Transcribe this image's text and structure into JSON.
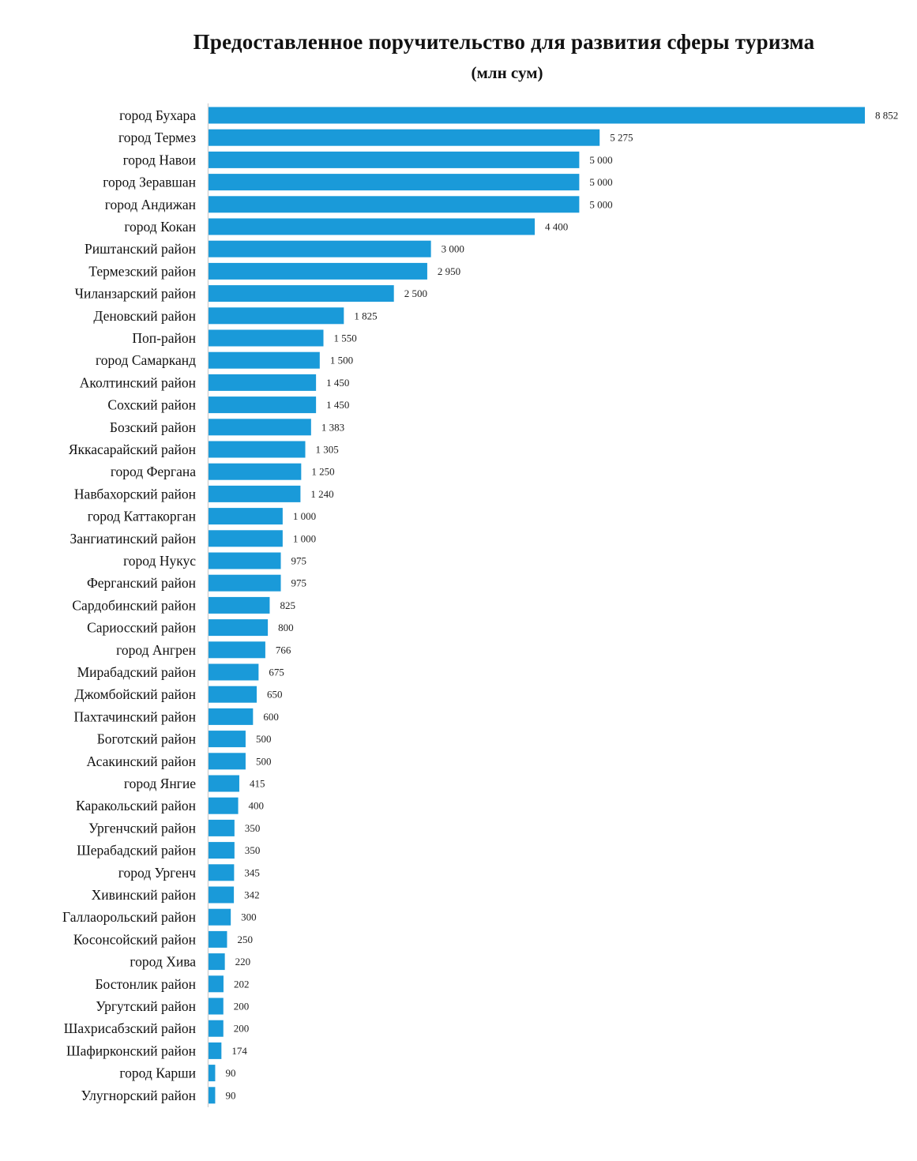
{
  "chart_data": {
    "type": "bar",
    "orientation": "horizontal",
    "title": "Предоставленное поручительство для развития сферы туризма",
    "subtitle": "(млн сум)",
    "bar_color": "#1a9ad9",
    "axis_color": "#d4d4d4",
    "grid": false,
    "legend": "none",
    "xlim": [
      0,
      8852
    ],
    "categories": [
      "город Бухара",
      "город Термез",
      "город Навои",
      "город Зеравшан",
      "город Андижан",
      "город Кокан",
      "Риштанский район",
      "Термезский район",
      "Чиланзарский район",
      "Деновский район",
      "Поп-район",
      "город Самарканд",
      "Аколтинский район",
      "Сохский район",
      "Бозский район",
      "Яккасарайский район",
      "город Фергана",
      "Навбахорский район",
      "город Каттакорган",
      "Зангиатинский район",
      "город Нукус",
      "Ферганский район",
      "Сардобинский район",
      "Сариосский район",
      "город Ангрен",
      "Мирабадский район",
      "Джомбойский район",
      "Пахтачинский район",
      "Боготский район",
      "Асакинский район",
      "город Янгие",
      "Каракольский район",
      "Ургенчский район",
      "Шерабадский район",
      "город Ургенч",
      "Хивинский район",
      "Галлаорольский район",
      "Косонсойский район",
      "город Хива",
      "Бостонлик район",
      "Ургутский район",
      "Шахрисабзский район",
      "Шафирконский район",
      "город Карши",
      "Улугнорский район"
    ],
    "values": [
      8852,
      5275,
      5000,
      5000,
      5000,
      4400,
      3000,
      2950,
      2500,
      1825,
      1550,
      1500,
      1450,
      1450,
      1383,
      1305,
      1250,
      1240,
      1000,
      1000,
      975,
      975,
      825,
      800,
      766,
      675,
      650,
      600,
      500,
      500,
      415,
      400,
      350,
      350,
      345,
      342,
      300,
      250,
      220,
      202,
      200,
      200,
      174,
      90,
      90
    ],
    "value_labels": [
      "8 852",
      "5 275",
      "5 000",
      "5 000",
      "5 000",
      "4 400",
      "3 000",
      "2 950",
      "2 500",
      "1 825",
      "1 550",
      "1 500",
      "1 450",
      "1 450",
      "1 383",
      "1 305",
      "1 250",
      "1 240",
      "1 000",
      "1 000",
      "975",
      "975",
      "825",
      "800",
      "766",
      "675",
      "650",
      "600",
      "500",
      "500",
      "415",
      "400",
      "350",
      "350",
      "345",
      "342",
      "300",
      "250",
      "220",
      "202",
      "200",
      "200",
      "174",
      "90",
      "90"
    ]
  }
}
